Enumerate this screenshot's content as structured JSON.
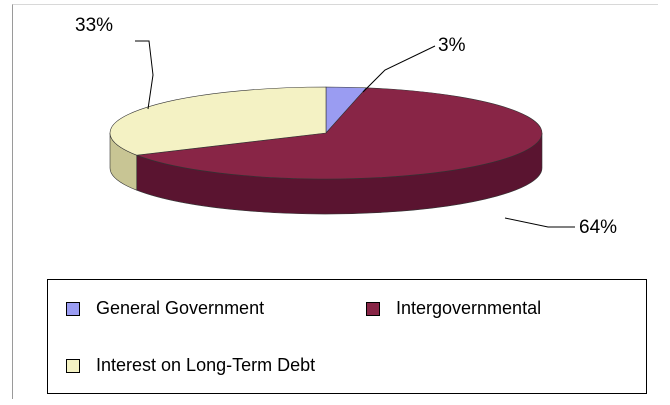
{
  "chart_data": {
    "type": "pie",
    "style": "3d",
    "title": "",
    "slices": [
      {
        "name": "General Government",
        "value": 3,
        "label": "3%",
        "color": "#9a9cf2",
        "side_color": "#6e70b8"
      },
      {
        "name": "Intergovernmental",
        "value": 64,
        "label": "64%",
        "color": "#882546",
        "side_color": "#5a1430"
      },
      {
        "name": "Interest on Long-Term Debt",
        "value": 33,
        "label": "33%",
        "color": "#f4f2c4",
        "side_color": "#c8c594"
      }
    ],
    "legend": {
      "placement": "bottom",
      "items": [
        {
          "label": "General Government",
          "color": "#9a9cf2"
        },
        {
          "label": "Intergovernmental",
          "color": "#882546"
        },
        {
          "label": "Interest on Long-Term Debt",
          "color": "#f4f2c4"
        }
      ]
    }
  }
}
